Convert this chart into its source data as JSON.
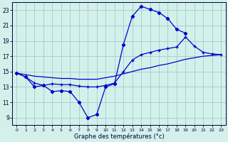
{
  "xlabel": "Graphe des températures (°c)",
  "background_color": "#d4f0eb",
  "grid_color": "#a0cccc",
  "line_color": "#0000cc",
  "hours": [
    0,
    1,
    2,
    3,
    4,
    5,
    6,
    7,
    8,
    9,
    10,
    11,
    12,
    13,
    14,
    15,
    16,
    17,
    18,
    19,
    20,
    21,
    22,
    23
  ],
  "temp_diamond": [
    14.8,
    14.3,
    13.0,
    13.2,
    12.4,
    12.5,
    12.4,
    11.0,
    9.0,
    9.4,
    13.0,
    13.4,
    18.5,
    22.2,
    23.5,
    23.1,
    22.7,
    21.9,
    20.5,
    20.0,
    null,
    null,
    null,
    null
  ],
  "temp_plus": [
    14.8,
    14.3,
    13.5,
    13.2,
    13.4,
    13.3,
    13.3,
    13.1,
    13.0,
    13.0,
    13.2,
    13.5,
    15.0,
    16.5,
    17.2,
    17.5,
    17.8,
    18.0,
    18.2,
    19.5,
    18.3,
    17.5,
    17.3,
    17.2
  ],
  "temp_straight": [
    14.8,
    14.6,
    14.4,
    14.3,
    14.2,
    14.1,
    14.1,
    14.0,
    14.0,
    14.0,
    14.2,
    14.4,
    14.7,
    15.0,
    15.3,
    15.5,
    15.8,
    16.0,
    16.3,
    16.6,
    16.8,
    17.0,
    17.1,
    17.2
  ],
  "ylim": [
    8,
    24
  ],
  "xlim_min": -0.5,
  "xlim_max": 23.5,
  "yticks": [
    9,
    11,
    13,
    15,
    17,
    19,
    21,
    23
  ],
  "xticks": [
    0,
    1,
    2,
    3,
    4,
    5,
    6,
    7,
    8,
    9,
    10,
    11,
    12,
    13,
    14,
    15,
    16,
    17,
    18,
    19,
    20,
    21,
    22,
    23
  ],
  "figsize": [
    3.2,
    2.0
  ],
  "dpi": 100
}
